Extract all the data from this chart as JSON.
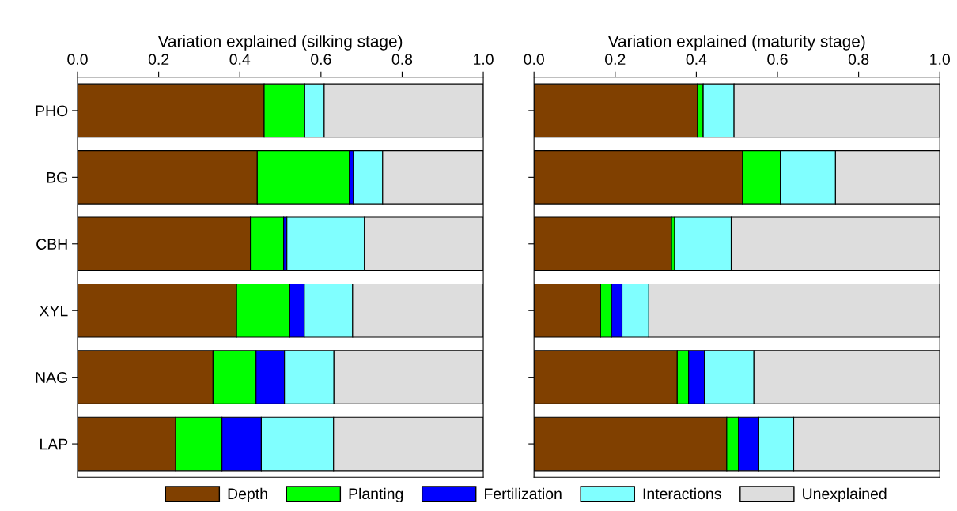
{
  "chart_data": [
    {
      "type": "bar",
      "orientation": "horizontal",
      "stacked": true,
      "xlabel": "Variation explained (silking stage)",
      "categories": [
        "PHO",
        "BG",
        "CBH",
        "XYL",
        "NAG",
        "LAP"
      ],
      "xlim": [
        0,
        1
      ],
      "xticks": [
        {
          "value": 0,
          "label": "0.0"
        },
        {
          "value": 0.2,
          "label": "0.2"
        },
        {
          "value": 0.4,
          "label": "0.4"
        },
        {
          "value": 0.6,
          "label": "0.6"
        },
        {
          "value": 0.8,
          "label": "0.8"
        },
        {
          "value": 1,
          "label": "1.0"
        }
      ],
      "grid": false,
      "legend": "bottom",
      "series": [
        {
          "name": "Depth",
          "color": "#804000",
          "values": [
            0.46,
            0.443,
            0.426,
            0.392,
            0.334,
            0.242
          ]
        },
        {
          "name": "Planting",
          "color": "#00ff00",
          "values": [
            0.1,
            0.227,
            0.082,
            0.131,
            0.106,
            0.114
          ]
        },
        {
          "name": "Fertilization",
          "color": "#0000ff",
          "values": [
            0,
            0.01,
            0.008,
            0.036,
            0.07,
            0.097
          ]
        },
        {
          "name": "Interactions",
          "color": "#80ffff",
          "values": [
            0.048,
            0.072,
            0.191,
            0.119,
            0.122,
            0.178
          ]
        },
        {
          "name": "Unexplained",
          "color": "#dddddd",
          "values": [
            0.392,
            0.248,
            0.293,
            0.322,
            0.368,
            0.369
          ]
        }
      ]
    },
    {
      "type": "bar",
      "orientation": "horizontal",
      "stacked": true,
      "xlabel": "Variation explained (maturity stage)",
      "categories": [
        null,
        null,
        null,
        null,
        null,
        null
      ],
      "tick_labels": "x",
      "xlim": [
        0,
        1
      ],
      "xticks": [
        {
          "value": 0,
          "label": "0.0"
        },
        {
          "value": 0.2,
          "label": "0.2"
        },
        {
          "value": 0.4,
          "label": "0.4"
        },
        {
          "value": 0.6,
          "label": "0.6"
        },
        {
          "value": 0.8,
          "label": "0.8"
        },
        {
          "value": 1,
          "label": "1.0"
        }
      ],
      "grid": false,
      "series": [
        {
          "name": "Depth",
          "color": "#804000",
          "values": [
            0.403,
            0.514,
            0.339,
            0.164,
            0.353,
            0.475
          ]
        },
        {
          "name": "Planting",
          "color": "#00ff00",
          "values": [
            0.014,
            0.093,
            0.008,
            0.027,
            0.028,
            0.029
          ]
        },
        {
          "name": "Fertilization",
          "color": "#0000ff",
          "values": [
            0,
            0,
            0,
            0.026,
            0.039,
            0.05
          ]
        },
        {
          "name": "Interactions",
          "color": "#80ffff",
          "values": [
            0.076,
            0.136,
            0.139,
            0.066,
            0.122,
            0.086
          ]
        },
        {
          "name": "Unexplained",
          "color": "#dddddd",
          "values": [
            0.507,
            0.257,
            0.514,
            0.717,
            0.458,
            0.36
          ]
        }
      ]
    }
  ]
}
